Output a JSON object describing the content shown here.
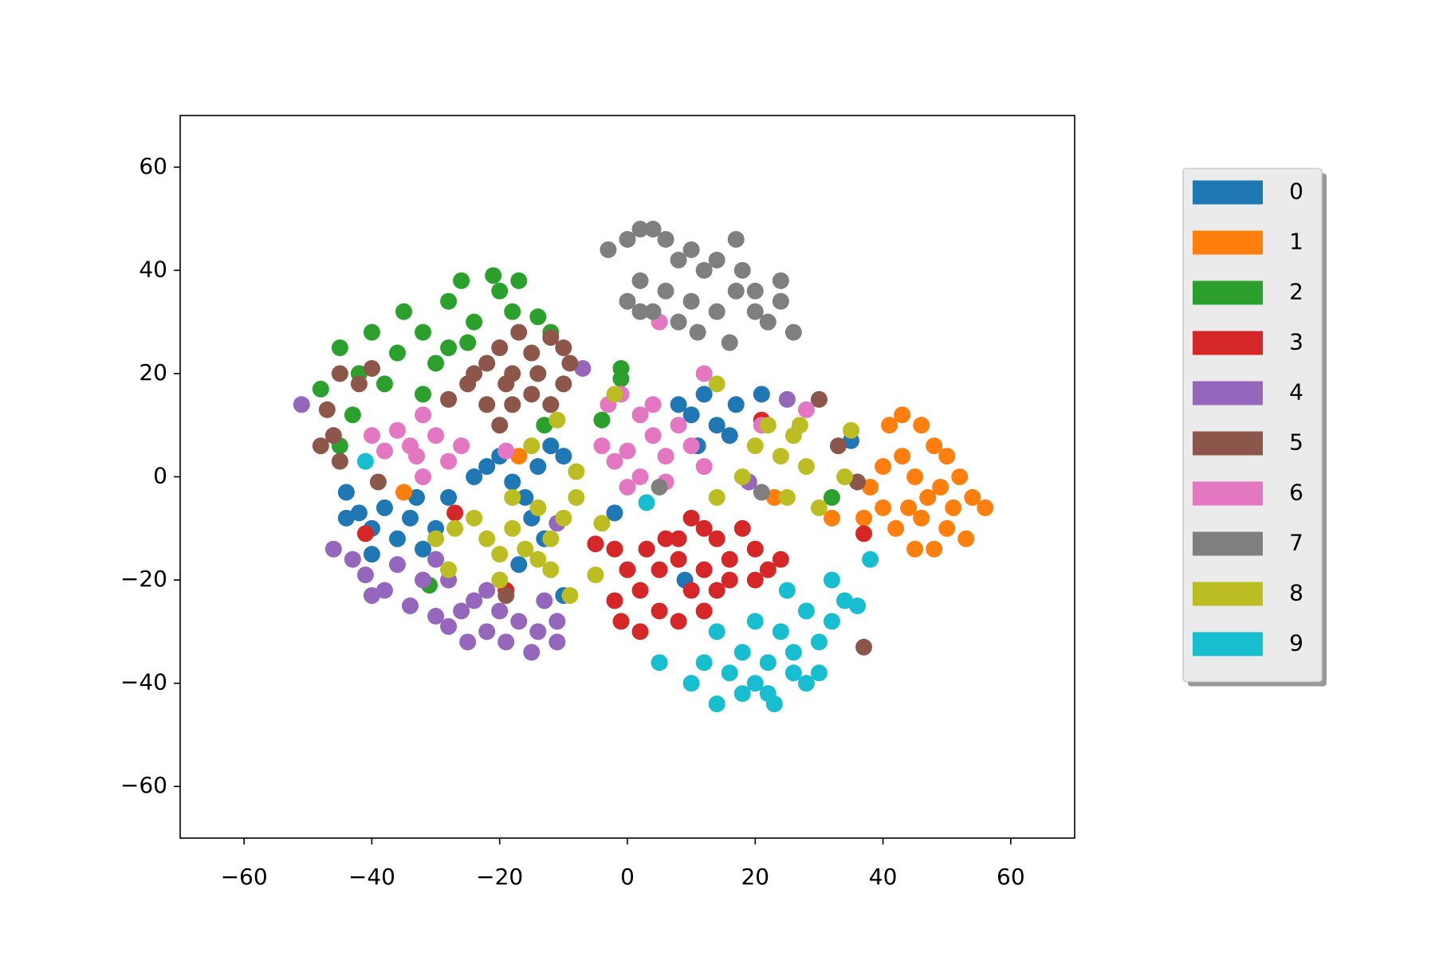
{
  "chart_data": {
    "type": "scatter",
    "xlim": [
      -70,
      70
    ],
    "ylim": [
      -70,
      70
    ],
    "xticks": [
      {
        "value": -60,
        "label": "−60"
      },
      {
        "value": -40,
        "label": "−40"
      },
      {
        "value": -20,
        "label": "−20"
      },
      0,
      20,
      40,
      60
    ],
    "yticks": [
      {
        "value": -60,
        "label": "−60"
      },
      {
        "value": -40,
        "label": "−40"
      },
      {
        "value": -20,
        "label": "−20"
      },
      0,
      20,
      40,
      60
    ],
    "grid": false,
    "legend": "center right",
    "series": [
      {
        "name": "0",
        "color": "#1f77b4",
        "x": [
          -44,
          -42,
          -40,
          -38,
          -36,
          -34,
          -32,
          -30,
          -33,
          -44,
          -40,
          -28,
          -24,
          -22,
          -20,
          -18,
          -16,
          -14,
          -12,
          -10,
          -15,
          -13,
          -17,
          8,
          10,
          12,
          14,
          16,
          11,
          17,
          21,
          -10,
          -2,
          35,
          9
        ],
        "y": [
          -3,
          -7,
          -10,
          -6,
          -12,
          -8,
          -14,
          -10,
          -4,
          -8,
          -15,
          -4,
          0,
          2,
          4,
          -1,
          -4,
          2,
          6,
          4,
          -8,
          -12,
          -17,
          14,
          12,
          16,
          10,
          8,
          6,
          14,
          16,
          -23,
          -7,
          7,
          -20
        ]
      },
      {
        "name": "1",
        "color": "#ff7f0e",
        "x": [
          41,
          43,
          46,
          48,
          50,
          52,
          54,
          56,
          53,
          50,
          48,
          45,
          42,
          40,
          38,
          40,
          43,
          45,
          47,
          44,
          46,
          49,
          51,
          37,
          32,
          -35,
          -17,
          23
        ],
        "y": [
          10,
          12,
          10,
          6,
          4,
          0,
          -4,
          -6,
          -12,
          -10,
          -14,
          -14,
          -10,
          -6,
          -2,
          2,
          4,
          0,
          -4,
          -6,
          -8,
          -2,
          -6,
          -8,
          -8,
          -3,
          4,
          -4
        ]
      },
      {
        "name": "2",
        "color": "#2ca02c",
        "x": [
          -48,
          -45,
          -42,
          -40,
          -38,
          -36,
          -35,
          -32,
          -30,
          -28,
          -26,
          -24,
          -21,
          -20,
          -18,
          -17,
          -14,
          -12,
          -25,
          -32,
          -43,
          -45,
          -28,
          -1,
          -1,
          -4,
          -13,
          32,
          -31
        ],
        "y": [
          17,
          25,
          20,
          28,
          18,
          24,
          32,
          28,
          22,
          34,
          38,
          30,
          39,
          36,
          32,
          38,
          31,
          28,
          26,
          16,
          12,
          6,
          25,
          21,
          19,
          11,
          10,
          -4,
          -21
        ]
      },
      {
        "name": "3",
        "color": "#d62728",
        "x": [
          -5,
          -2,
          0,
          2,
          -2,
          -1,
          2,
          5,
          8,
          10,
          8,
          10,
          12,
          14,
          16,
          18,
          20,
          22,
          24,
          20,
          16,
          14,
          12,
          8,
          5,
          3,
          6,
          12,
          -41,
          -27,
          37,
          21,
          -19
        ],
        "y": [
          -13,
          -14,
          -18,
          -22,
          -24,
          -28,
          -30,
          -26,
          -28,
          -22,
          -12,
          -8,
          -10,
          -12,
          -16,
          -10,
          -14,
          -18,
          -16,
          -20,
          -20,
          -22,
          -18,
          -16,
          -18,
          -14,
          -12,
          -26,
          -11,
          -7,
          -11,
          11,
          -22
        ]
      },
      {
        "name": "4",
        "color": "#9467bd",
        "x": [
          -46,
          -43,
          -41,
          -40,
          -38,
          -36,
          -34,
          -32,
          -30,
          -28,
          -30,
          -28,
          -26,
          -24,
          -22,
          -20,
          -25,
          -22,
          -19,
          -17,
          -15,
          -14,
          -13,
          -11,
          -11,
          -51,
          -11,
          25,
          -7,
          19
        ],
        "y": [
          -14,
          -16,
          -19,
          -23,
          -22,
          -17,
          -25,
          -20,
          -27,
          -29,
          -16,
          -20,
          -26,
          -24,
          -30,
          -26,
          -32,
          -22,
          -32,
          -28,
          -34,
          -30,
          -24,
          -28,
          -32,
          14,
          -9,
          15,
          21,
          -1
        ]
      },
      {
        "name": "5",
        "color": "#8c564b",
        "x": [
          -45,
          -42,
          -40,
          -28,
          -25,
          -22,
          -20,
          -18,
          -15,
          -12,
          -10,
          -9,
          -10,
          -12,
          -15,
          -18,
          -22,
          -24,
          -17,
          -14,
          -20,
          -19,
          -47,
          -48,
          -46,
          -45,
          -39,
          33,
          36,
          30,
          37,
          -19
        ],
        "y": [
          20,
          18,
          21,
          15,
          18,
          22,
          25,
          20,
          24,
          27,
          25,
          22,
          18,
          14,
          16,
          14,
          14,
          20,
          28,
          20,
          10,
          18,
          13,
          6,
          8,
          3,
          -1,
          6,
          -1,
          15,
          -33,
          -23
        ]
      },
      {
        "name": "6",
        "color": "#e377c2",
        "x": [
          -40,
          -38,
          -36,
          -34,
          -32,
          -30,
          -33,
          -28,
          -26,
          -32,
          -4,
          -2,
          0,
          2,
          4,
          6,
          8,
          10,
          12,
          4,
          2,
          0,
          6,
          -3,
          -19,
          12,
          5,
          28,
          -1,
          21
        ],
        "y": [
          8,
          5,
          9,
          6,
          12,
          8,
          4,
          3,
          6,
          0,
          6,
          3,
          5,
          0,
          8,
          4,
          10,
          6,
          2,
          14,
          12,
          -2,
          -1,
          14,
          5,
          20,
          30,
          13,
          16,
          10
        ]
      },
      {
        "name": "7",
        "color": "#7f7f7f",
        "x": [
          -3,
          0,
          2,
          4,
          6,
          8,
          10,
          12,
          14,
          17,
          18,
          20,
          22,
          24,
          26,
          24,
          20,
          16,
          14,
          10,
          8,
          6,
          4,
          2,
          0,
          2,
          11,
          17,
          5,
          21
        ],
        "y": [
          44,
          46,
          48,
          48,
          46,
          42,
          44,
          40,
          42,
          46,
          40,
          36,
          30,
          34,
          28,
          38,
          32,
          26,
          32,
          34,
          30,
          36,
          32,
          38,
          34,
          32,
          28,
          36,
          -2,
          -3
        ]
      },
      {
        "name": "8",
        "color": "#bcbd22",
        "x": [
          -30,
          -27,
          -24,
          -22,
          -20,
          -18,
          -16,
          -14,
          -12,
          -10,
          -8,
          -12,
          -14,
          -18,
          -28,
          -20,
          -9,
          -5,
          -4,
          -2,
          -11,
          -8,
          14,
          20,
          22,
          24,
          26,
          28,
          30,
          25,
          18,
          14,
          27,
          34,
          35,
          -15
        ],
        "y": [
          -12,
          -10,
          -8,
          -12,
          -15,
          -10,
          -14,
          -16,
          -12,
          -8,
          -4,
          -18,
          -6,
          -4,
          -18,
          -20,
          -23,
          -19,
          -9,
          16,
          11,
          1,
          18,
          6,
          10,
          4,
          8,
          2,
          -6,
          -4,
          0,
          -4,
          10,
          0,
          9,
          6
        ]
      },
      {
        "name": "9",
        "color": "#17becf",
        "x": [
          10,
          12,
          14,
          14,
          16,
          18,
          20,
          22,
          20,
          22,
          24,
          25,
          26,
          28,
          28,
          30,
          32,
          32,
          34,
          36,
          23,
          18,
          5,
          38,
          -41,
          3,
          26,
          30
        ],
        "y": [
          -40,
          -36,
          -30,
          -44,
          -38,
          -34,
          -40,
          -42,
          -28,
          -36,
          -30,
          -22,
          -34,
          -26,
          -40,
          -32,
          -28,
          -20,
          -24,
          -25,
          -44,
          -42,
          -36,
          -16,
          3,
          -5,
          -38,
          -38
        ]
      }
    ]
  }
}
